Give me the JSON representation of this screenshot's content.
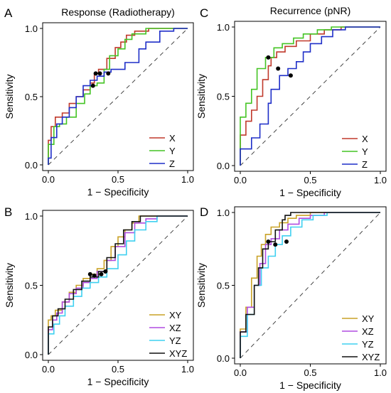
{
  "chart_data": [
    {
      "panel": "A",
      "type": "line",
      "title": "Response (Radiotherapy)",
      "xlabel": "1 − Specificity",
      "ylabel": "Sensitivity",
      "xlim": [
        0,
        1
      ],
      "ylim": [
        0,
        1
      ],
      "xticks": [
        "0.0",
        "0.5",
        "1.0"
      ],
      "yticks": [
        "0.0",
        "0.5",
        "1.0"
      ],
      "legend_position": "bottom-right",
      "series": [
        {
          "name": "X",
          "color": "#c0392b",
          "points": [
            [
              0,
              0
            ],
            [
              0,
              0.08
            ],
            [
              0.02,
              0.18
            ],
            [
              0.05,
              0.28
            ],
            [
              0.1,
              0.35
            ],
            [
              0.15,
              0.38
            ],
            [
              0.2,
              0.45
            ],
            [
              0.25,
              0.5
            ],
            [
              0.3,
              0.55
            ],
            [
              0.33,
              0.6
            ],
            [
              0.36,
              0.67
            ],
            [
              0.42,
              0.7
            ],
            [
              0.48,
              0.78
            ],
            [
              0.52,
              0.86
            ],
            [
              0.56,
              0.9
            ],
            [
              0.62,
              0.95
            ],
            [
              0.72,
              0.98
            ],
            [
              0.8,
              1
            ],
            [
              1,
              1
            ]
          ]
        },
        {
          "name": "Y",
          "color": "#44c424",
          "points": [
            [
              0,
              0
            ],
            [
              0,
              0.05
            ],
            [
              0.04,
              0.15
            ],
            [
              0.08,
              0.28
            ],
            [
              0.13,
              0.3
            ],
            [
              0.2,
              0.35
            ],
            [
              0.26,
              0.45
            ],
            [
              0.3,
              0.52
            ],
            [
              0.35,
              0.58
            ],
            [
              0.4,
              0.6
            ],
            [
              0.44,
              0.7
            ],
            [
              0.5,
              0.8
            ],
            [
              0.55,
              0.85
            ],
            [
              0.6,
              0.92
            ],
            [
              0.7,
              0.96
            ],
            [
              0.8,
              1
            ],
            [
              1,
              1
            ]
          ]
        },
        {
          "name": "Z",
          "color": "#1e2ec8",
          "points": [
            [
              0,
              0
            ],
            [
              0.02,
              0.05
            ],
            [
              0.06,
              0.2
            ],
            [
              0.1,
              0.3
            ],
            [
              0.15,
              0.35
            ],
            [
              0.2,
              0.42
            ],
            [
              0.25,
              0.5
            ],
            [
              0.3,
              0.58
            ],
            [
              0.35,
              0.62
            ],
            [
              0.4,
              0.65
            ],
            [
              0.45,
              0.68
            ],
            [
              0.55,
              0.7
            ],
            [
              0.65,
              0.75
            ],
            [
              0.7,
              0.85
            ],
            [
              0.8,
              0.9
            ],
            [
              0.9,
              0.98
            ],
            [
              0.95,
              1
            ],
            [
              1,
              1
            ]
          ]
        }
      ],
      "markers": [
        [
          0.32,
          0.58
        ],
        [
          0.34,
          0.67
        ],
        [
          0.37,
          0.67
        ],
        [
          0.43,
          0.67
        ]
      ]
    },
    {
      "panel": "C",
      "type": "line",
      "title": "Recurrence (pNR)",
      "xlabel": "1 − Specificity",
      "ylabel": "Sensitivity",
      "xlim": [
        0,
        1
      ],
      "ylim": [
        0,
        1
      ],
      "xticks": [
        "0.0",
        "0.5",
        "1.0"
      ],
      "yticks": [
        "0.0",
        "0.5",
        "1.0"
      ],
      "legend_position": "bottom-right",
      "series": [
        {
          "name": "X",
          "color": "#c0392b",
          "points": [
            [
              0,
              0
            ],
            [
              0,
              0.1
            ],
            [
              0.04,
              0.22
            ],
            [
              0.08,
              0.32
            ],
            [
              0.12,
              0.4
            ],
            [
              0.16,
              0.5
            ],
            [
              0.2,
              0.62
            ],
            [
              0.22,
              0.72
            ],
            [
              0.26,
              0.78
            ],
            [
              0.32,
              0.82
            ],
            [
              0.4,
              0.86
            ],
            [
              0.5,
              0.9
            ],
            [
              0.6,
              0.95
            ],
            [
              0.72,
              0.98
            ],
            [
              0.8,
              1
            ],
            [
              1,
              1
            ]
          ]
        },
        {
          "name": "Y",
          "color": "#44c424",
          "points": [
            [
              0,
              0
            ],
            [
              0,
              0.25
            ],
            [
              0.04,
              0.35
            ],
            [
              0.08,
              0.45
            ],
            [
              0.12,
              0.55
            ],
            [
              0.18,
              0.7
            ],
            [
              0.24,
              0.78
            ],
            [
              0.3,
              0.85
            ],
            [
              0.38,
              0.88
            ],
            [
              0.45,
              0.92
            ],
            [
              0.55,
              0.95
            ],
            [
              0.65,
              0.98
            ],
            [
              0.78,
              1
            ],
            [
              1,
              1
            ]
          ]
        },
        {
          "name": "Z",
          "color": "#1e2ec8",
          "points": [
            [
              0,
              0
            ],
            [
              0,
              0.1
            ],
            [
              0.08,
              0.12
            ],
            [
              0.14,
              0.2
            ],
            [
              0.2,
              0.3
            ],
            [
              0.22,
              0.45
            ],
            [
              0.28,
              0.55
            ],
            [
              0.34,
              0.65
            ],
            [
              0.4,
              0.7
            ],
            [
              0.45,
              0.75
            ],
            [
              0.5,
              0.82
            ],
            [
              0.58,
              0.88
            ],
            [
              0.66,
              0.93
            ],
            [
              0.75,
              0.98
            ],
            [
              0.82,
              1
            ],
            [
              1,
              1
            ]
          ]
        }
      ],
      "markers": [
        [
          0.2,
          0.78
        ],
        [
          0.27,
          0.7
        ],
        [
          0.36,
          0.65
        ]
      ]
    },
    {
      "panel": "B",
      "type": "line",
      "title": "",
      "xlabel": "1 − Specificity",
      "ylabel": "Sensitivity",
      "xlim": [
        0,
        1
      ],
      "ylim": [
        0,
        1
      ],
      "xticks": [
        "0.0",
        "0.5",
        "1.0"
      ],
      "yticks": [
        "0.0",
        "0.5",
        "1.0"
      ],
      "legend_position": "bottom-right",
      "series": [
        {
          "name": "XY",
          "color": "#c9a227",
          "points": [
            [
              0,
              0
            ],
            [
              0,
              0.12
            ],
            [
              0.02,
              0.25
            ],
            [
              0.05,
              0.28
            ],
            [
              0.1,
              0.32
            ],
            [
              0.15,
              0.38
            ],
            [
              0.2,
              0.45
            ],
            [
              0.25,
              0.5
            ],
            [
              0.3,
              0.55
            ],
            [
              0.35,
              0.58
            ],
            [
              0.4,
              0.62
            ],
            [
              0.45,
              0.68
            ],
            [
              0.5,
              0.78
            ],
            [
              0.55,
              0.85
            ],
            [
              0.6,
              0.9
            ],
            [
              0.65,
              0.95
            ],
            [
              0.7,
              1
            ],
            [
              1,
              1
            ]
          ]
        },
        {
          "name": "XZ",
          "color": "#b04ce0",
          "points": [
            [
              0,
              0
            ],
            [
              0,
              0.08
            ],
            [
              0.03,
              0.18
            ],
            [
              0.06,
              0.25
            ],
            [
              0.1,
              0.3
            ],
            [
              0.15,
              0.38
            ],
            [
              0.2,
              0.44
            ],
            [
              0.25,
              0.48
            ],
            [
              0.3,
              0.52
            ],
            [
              0.35,
              0.55
            ],
            [
              0.42,
              0.6
            ],
            [
              0.48,
              0.68
            ],
            [
              0.55,
              0.78
            ],
            [
              0.62,
              0.88
            ],
            [
              0.7,
              0.95
            ],
            [
              0.78,
              0.98
            ],
            [
              0.85,
              1
            ],
            [
              1,
              1
            ]
          ]
        },
        {
          "name": "YZ",
          "color": "#3fd0f0",
          "points": [
            [
              0,
              0
            ],
            [
              0,
              0.06
            ],
            [
              0.04,
              0.15
            ],
            [
              0.08,
              0.22
            ],
            [
              0.12,
              0.28
            ],
            [
              0.18,
              0.35
            ],
            [
              0.24,
              0.42
            ],
            [
              0.3,
              0.48
            ],
            [
              0.36,
              0.52
            ],
            [
              0.42,
              0.56
            ],
            [
              0.5,
              0.62
            ],
            [
              0.56,
              0.72
            ],
            [
              0.62,
              0.82
            ],
            [
              0.7,
              0.9
            ],
            [
              0.78,
              0.96
            ],
            [
              0.85,
              1
            ],
            [
              1,
              1
            ]
          ]
        },
        {
          "name": "XYZ",
          "color": "#111111",
          "points": [
            [
              0,
              0
            ],
            [
              0,
              0.1
            ],
            [
              0.03,
              0.2
            ],
            [
              0.07,
              0.28
            ],
            [
              0.12,
              0.33
            ],
            [
              0.18,
              0.4
            ],
            [
              0.24,
              0.47
            ],
            [
              0.3,
              0.53
            ],
            [
              0.36,
              0.56
            ],
            [
              0.42,
              0.6
            ],
            [
              0.48,
              0.7
            ],
            [
              0.54,
              0.8
            ],
            [
              0.6,
              0.9
            ],
            [
              0.66,
              0.96
            ],
            [
              0.7,
              1
            ],
            [
              1,
              1
            ]
          ]
        }
      ],
      "markers": [
        [
          0.3,
          0.58
        ],
        [
          0.33,
          0.57
        ],
        [
          0.38,
          0.58
        ],
        [
          0.41,
          0.6
        ]
      ]
    },
    {
      "panel": "D",
      "type": "line",
      "title": "",
      "xlabel": "1 − Specificity",
      "ylabel": "Sensitivity",
      "xlim": [
        0,
        1
      ],
      "ylim": [
        0,
        1
      ],
      "xticks": [
        "0.0",
        "0.5",
        "1.0"
      ],
      "yticks": [
        "0.0",
        "0.5",
        "1.0"
      ],
      "legend_position": "bottom-right",
      "series": [
        {
          "name": "XY",
          "color": "#c9a227",
          "points": [
            [
              0,
              0
            ],
            [
              0,
              0.15
            ],
            [
              0.04,
              0.2
            ],
            [
              0.08,
              0.35
            ],
            [
              0.12,
              0.55
            ],
            [
              0.15,
              0.7
            ],
            [
              0.18,
              0.78
            ],
            [
              0.22,
              0.85
            ],
            [
              0.28,
              0.9
            ],
            [
              0.34,
              0.93
            ],
            [
              0.4,
              0.96
            ],
            [
              0.5,
              0.98
            ],
            [
              0.6,
              1
            ],
            [
              1,
              1
            ]
          ]
        },
        {
          "name": "XZ",
          "color": "#b04ce0",
          "points": [
            [
              0,
              0
            ],
            [
              0,
              0.12
            ],
            [
              0.05,
              0.18
            ],
            [
              0.1,
              0.35
            ],
            [
              0.14,
              0.5
            ],
            [
              0.18,
              0.65
            ],
            [
              0.22,
              0.78
            ],
            [
              0.28,
              0.82
            ],
            [
              0.34,
              0.88
            ],
            [
              0.42,
              0.92
            ],
            [
              0.5,
              0.96
            ],
            [
              0.6,
              0.98
            ],
            [
              0.7,
              1
            ],
            [
              1,
              1
            ]
          ]
        },
        {
          "name": "YZ",
          "color": "#3fd0f0",
          "points": [
            [
              0,
              0
            ],
            [
              0,
              0.1
            ],
            [
              0.05,
              0.15
            ],
            [
              0.1,
              0.3
            ],
            [
              0.15,
              0.5
            ],
            [
              0.2,
              0.62
            ],
            [
              0.25,
              0.7
            ],
            [
              0.3,
              0.78
            ],
            [
              0.36,
              0.84
            ],
            [
              0.44,
              0.9
            ],
            [
              0.52,
              0.95
            ],
            [
              0.62,
              0.98
            ],
            [
              0.75,
              1
            ],
            [
              1,
              1
            ]
          ]
        },
        {
          "name": "XYZ",
          "color": "#111111",
          "points": [
            [
              0,
              0
            ],
            [
              0,
              0.12
            ],
            [
              0.04,
              0.18
            ],
            [
              0.1,
              0.3
            ],
            [
              0.13,
              0.5
            ],
            [
              0.16,
              0.62
            ],
            [
              0.2,
              0.75
            ],
            [
              0.25,
              0.8
            ],
            [
              0.3,
              0.88
            ],
            [
              0.32,
              0.95
            ],
            [
              0.36,
              0.98
            ],
            [
              0.4,
              1
            ],
            [
              1,
              1
            ]
          ]
        }
      ],
      "markers": [
        [
          0.2,
          0.8
        ],
        [
          0.25,
          0.78
        ],
        [
          0.33,
          0.8
        ]
      ]
    }
  ]
}
